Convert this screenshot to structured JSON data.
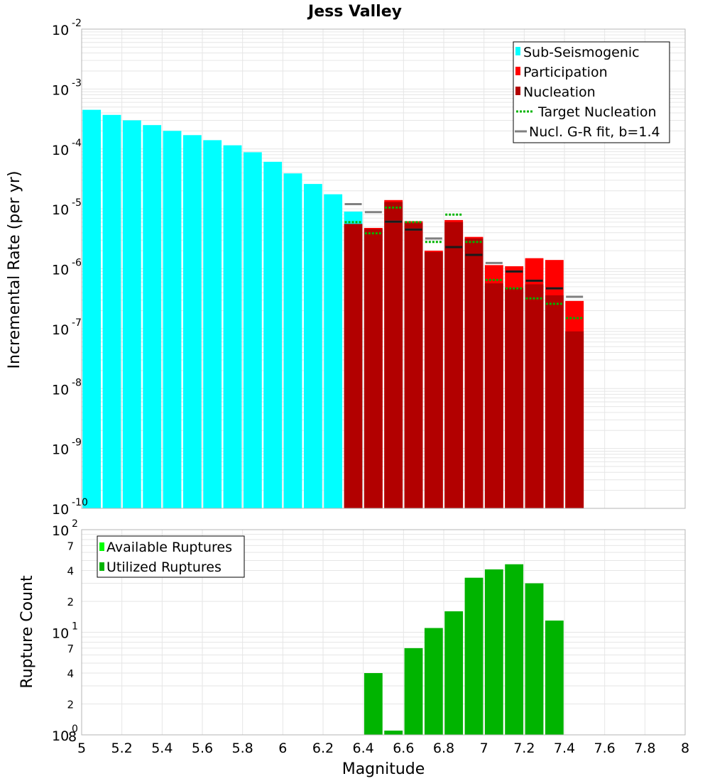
{
  "title": "Jess Valley",
  "colors": {
    "sub_seismogenic": "#00ffff",
    "participation": "#ff0000",
    "nucleation": "#b20000",
    "target_nucleation": "#00b400",
    "gr_fit": "#808080",
    "nucl_mark": "#1a1a1a",
    "available": "#00ff00",
    "utilized": "#00b400",
    "grid": "#e6e6e6",
    "frame": "#b4b4b4"
  },
  "chart_data": [
    {
      "type": "bar",
      "name": "rate-panel",
      "scale": "log",
      "ylabel": "Incremental Rate (per yr)",
      "ylim_exponents": [
        -10,
        -2
      ],
      "y_tick_exponents": [
        -10,
        -9,
        -8,
        -7,
        -6,
        -5,
        -4,
        -3,
        -2
      ],
      "xlim": [
        5,
        8
      ],
      "legend": {
        "position": "top-right",
        "entries": [
          "Sub-Seismogenic",
          "Participation",
          "Nucleation",
          "Target Nucleation",
          "Nucl. G-R fit, b=1.4"
        ]
      },
      "sub_seismogenic": {
        "m": [
          5.05,
          5.15,
          5.25,
          5.35,
          5.45,
          5.55,
          5.65,
          5.75,
          5.85,
          5.95,
          6.05,
          6.15,
          6.25,
          6.35
        ],
        "values": [
          0.00045,
          0.00037,
          0.0003,
          0.00025,
          0.0002,
          0.00017,
          0.00014,
          0.000115,
          8.8e-05,
          6.1e-05,
          3.9e-05,
          2.6e-05,
          1.75e-05,
          9e-06
        ]
      },
      "participation": {
        "m": [
          6.45,
          6.55,
          6.65,
          6.75,
          6.85,
          6.95,
          7.05,
          7.15,
          7.25,
          7.35,
          7.45
        ],
        "values": [
          4.8e-06,
          1.4e-05,
          6.2e-06,
          2e-06,
          6.5e-06,
          3.4e-06,
          1.15e-06,
          1.1e-06,
          1.5e-06,
          1.4e-06,
          2.9e-07
        ]
      },
      "nucleation": {
        "m": [
          6.35,
          6.45,
          6.55,
          6.65,
          6.75,
          6.85,
          6.95,
          7.05,
          7.15,
          7.25,
          7.35,
          7.45
        ],
        "values": [
          5.6e-06,
          4.6e-06,
          1.3e-05,
          5.8e-06,
          1.9e-06,
          6e-06,
          3.2e-06,
          5.7e-07,
          4.8e-07,
          5.5e-07,
          3.6e-07,
          9e-08
        ]
      },
      "target_nucleation": {
        "m": [
          6.35,
          6.45,
          6.55,
          6.65,
          6.75,
          6.85,
          6.95,
          7.05,
          7.15,
          7.25,
          7.35,
          7.45
        ],
        "values": [
          6e-06,
          3.9e-06,
          1.05e-05,
          6e-06,
          2.8e-06,
          8e-06,
          2.8e-06,
          6.5e-07,
          4.7e-07,
          3.2e-07,
          2.6e-07,
          1.5e-07
        ]
      },
      "gr_fit": {
        "m": [
          6.35,
          6.45,
          6.55,
          6.65,
          6.75,
          6.85,
          6.95,
          7.05,
          7.15,
          7.25,
          7.35,
          7.45
        ],
        "values": [
          1.2e-05,
          8.8e-06,
          6.1e-06,
          4.5e-06,
          3.2e-06,
          2.3e-06,
          1.7e-06,
          1.25e-06,
          9e-07,
          6.3e-07,
          4.7e-07,
          3.4e-07
        ]
      },
      "nucl_fit_marks": {
        "m": [
          6.55,
          6.65,
          6.85,
          6.95,
          7.15,
          7.25,
          7.35
        ],
        "values": [
          6.1e-06,
          4.5e-06,
          2.3e-06,
          1.7e-06,
          9e-07,
          6.3e-07,
          4.7e-07
        ]
      }
    },
    {
      "type": "bar",
      "name": "count-panel",
      "scale": "log",
      "ylabel": "Rupture Count",
      "xlabel": "Magnitude",
      "ylim_exponents": [
        0,
        2
      ],
      "xlim": [
        5,
        8
      ],
      "x_ticks": [
        "5",
        "5.2",
        "5.4",
        "5.6",
        "5.8",
        "6",
        "6.2",
        "6.4",
        "6.6",
        "6.8",
        "7",
        "7.2",
        "7.4",
        "7.6",
        "7.8",
        "8"
      ],
      "y_minor_labels": [
        {
          "value": 2,
          "label": "2"
        },
        {
          "value": 4,
          "label": "4"
        },
        {
          "value": 7,
          "label": "7"
        },
        {
          "value": 20,
          "label": "2"
        },
        {
          "value": 40,
          "label": "4"
        },
        {
          "value": 70,
          "label": "7"
        }
      ],
      "y_major_labels": [
        {
          "exp": 0,
          "label": "10",
          "sup": "0"
        },
        {
          "exp": 1,
          "label": "10",
          "sup": "1"
        },
        {
          "exp": 2,
          "label": "10",
          "sup": "2"
        }
      ],
      "legend": {
        "position": "top-left",
        "entries": [
          "Available Ruptures",
          "Utilized Ruptures"
        ]
      },
      "utilized": {
        "m": [
          6.45,
          6.55,
          6.65,
          6.75,
          6.85,
          6.95,
          7.05,
          7.15,
          7.25,
          7.35
        ],
        "values": [
          4,
          1.1,
          7,
          11,
          16,
          34,
          41,
          46,
          30,
          13
        ]
      }
    }
  ],
  "tick_labels": {
    "rate_major_base": "10",
    "rate_major_sups": [
      "-10",
      "-9",
      "-8",
      "-7",
      "-6",
      "-5",
      "-4",
      "-3",
      "-2"
    ],
    "count_extra_label": "8"
  }
}
